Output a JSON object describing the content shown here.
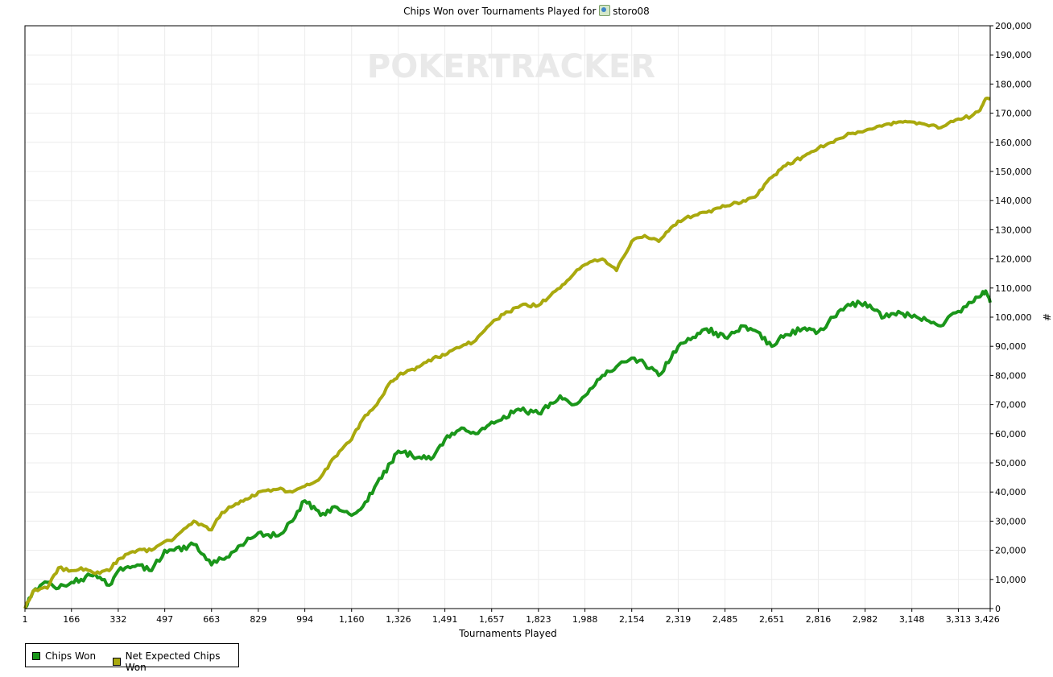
{
  "title": {
    "prefix": "Chips Won over Tournaments Played for",
    "player": "storo08"
  },
  "watermark": "POKERTRACKER",
  "chart_data": {
    "type": "line",
    "title": "Chips Won over Tournaments Played for storo08",
    "xlabel": "Tournaments Played",
    "ylabel": "#",
    "xlim": [
      1,
      3426
    ],
    "ylim": [
      0,
      200000
    ],
    "x_ticks": [
      "1",
      "166",
      "332",
      "497",
      "663",
      "829",
      "994",
      "1,160",
      "1,326",
      "1,491",
      "1,657",
      "1,823",
      "1,988",
      "2,154",
      "2,319",
      "2,485",
      "2,651",
      "2,816",
      "2,982",
      "3,148",
      "3,313",
      "3,426"
    ],
    "y_ticks": [
      "0",
      "10,000",
      "20,000",
      "30,000",
      "40,000",
      "50,000",
      "60,000",
      "70,000",
      "80,000",
      "90,000",
      "100,000",
      "110,000",
      "120,000",
      "130,000",
      "140,000",
      "150,000",
      "160,000",
      "170,000",
      "180,000",
      "190,000",
      "200,000"
    ],
    "grid": true,
    "legend_position": "bottom-left",
    "x": [
      1,
      30,
      80,
      120,
      166,
      200,
      250,
      300,
      332,
      400,
      450,
      497,
      530,
      600,
      663,
      700,
      750,
      800,
      829,
      900,
      950,
      994,
      1050,
      1100,
      1160,
      1200,
      1250,
      1300,
      1326,
      1400,
      1450,
      1491,
      1550,
      1600,
      1657,
      1700,
      1760,
      1823,
      1900,
      1950,
      1988,
      2050,
      2100,
      2154,
      2200,
      2250,
      2319,
      2380,
      2420,
      2485,
      2550,
      2600,
      2651,
      2700,
      2760,
      2816,
      2870,
      2930,
      2982,
      3050,
      3100,
      3148,
      3200,
      3250,
      3313,
      3360,
      3390,
      3410,
      3426
    ],
    "series": [
      {
        "name": "Chips Won",
        "color": "#1a961a",
        "values": [
          0,
          6000,
          9000,
          7000,
          9000,
          10000,
          12000,
          8000,
          13000,
          15000,
          13000,
          20000,
          20000,
          22000,
          15000,
          17000,
          20000,
          24000,
          26000,
          25000,
          30000,
          37000,
          32000,
          35000,
          32000,
          35000,
          43000,
          50000,
          54000,
          52000,
          52000,
          58000,
          62000,
          60000,
          64000,
          66000,
          68000,
          67000,
          73000,
          70000,
          73000,
          80000,
          83000,
          86000,
          84000,
          80000,
          90000,
          93000,
          96000,
          93000,
          97000,
          95000,
          90000,
          94000,
          96000,
          95000,
          100000,
          104000,
          105000,
          100000,
          102000,
          100000,
          99000,
          97000,
          102000,
          105000,
          107000,
          109000,
          105000
        ]
      },
      {
        "name": "Net Expected Chips Won",
        "color": "#a9a90e",
        "values": [
          0,
          6000,
          7000,
          14000,
          13000,
          14000,
          12000,
          13000,
          17000,
          20000,
          20000,
          23000,
          24000,
          30000,
          27000,
          33000,
          36000,
          38000,
          40000,
          41000,
          40000,
          42000,
          45000,
          52000,
          58000,
          65000,
          70000,
          78000,
          80000,
          83000,
          86000,
          87000,
          90000,
          92000,
          98000,
          101000,
          104000,
          104000,
          110000,
          115000,
          118000,
          120000,
          116000,
          126000,
          128000,
          126000,
          133000,
          135000,
          136000,
          138000,
          140000,
          142000,
          148000,
          152000,
          155000,
          158000,
          160000,
          163000,
          164000,
          166000,
          167000,
          167000,
          166000,
          165000,
          168000,
          169000,
          171000,
          175000,
          175000
        ]
      }
    ]
  },
  "legend": {
    "items": [
      {
        "label": "Chips Won",
        "color": "#1a961a"
      },
      {
        "label": "Net Expected Chips Won",
        "color": "#a9a90e"
      }
    ]
  }
}
